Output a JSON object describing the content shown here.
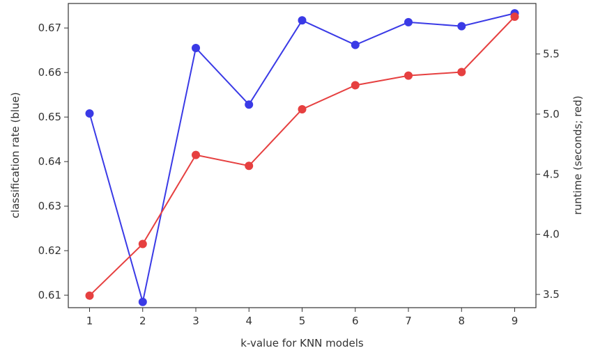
{
  "chart_data": {
    "type": "line",
    "xlabel": "k-value for KNN models",
    "ylabel_left": "classification rate (blue)",
    "ylabel_right": "runtime (seconds; red)",
    "x": [
      1,
      2,
      3,
      4,
      5,
      6,
      7,
      8,
      9
    ],
    "x_ticks": [
      "1",
      "2",
      "3",
      "4",
      "5",
      "6",
      "7",
      "8",
      "9"
    ],
    "ylim_left": [
      0.6072,
      0.6755
    ],
    "ylim_right": [
      3.39,
      5.92
    ],
    "yticks_left": [
      "0.61",
      "0.62",
      "0.63",
      "0.64",
      "0.65",
      "0.66",
      "0.67"
    ],
    "yticks_right": [
      "3.5",
      "4.0",
      "4.5",
      "5.0",
      "5.5"
    ],
    "grid": false,
    "series": [
      {
        "axis": "left",
        "color": "#3a3ae6",
        "values": [
          0.6508,
          0.6085,
          0.6655,
          0.6528,
          0.6717,
          0.6662,
          0.6713,
          0.6704,
          0.6733
        ]
      },
      {
        "axis": "right",
        "color": "#e64040",
        "values": [
          3.49,
          3.92,
          4.66,
          4.57,
          5.04,
          5.24,
          5.32,
          5.35,
          5.81
        ]
      }
    ]
  }
}
